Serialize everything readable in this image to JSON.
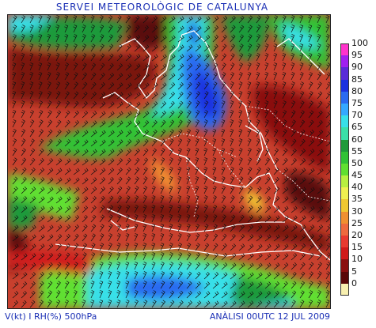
{
  "header": {
    "title": "SERVEI METEOROLÒGIC DE CATALUNYA"
  },
  "footer": {
    "left": "V(kt) I RH(%) 500hPa",
    "right": "ANÀLISI 00UTC 12 JUL 2009"
  },
  "legend": {
    "items": [
      {
        "label": "100",
        "color": "#ff33cc"
      },
      {
        "label": "95",
        "color": "#a020f0"
      },
      {
        "label": "90",
        "color": "#5a2bd8"
      },
      {
        "label": "85",
        "color": "#1a30e0"
      },
      {
        "label": "80",
        "color": "#2a6af0"
      },
      {
        "label": "75",
        "color": "#35a8ff"
      },
      {
        "label": "70",
        "color": "#38e0e8"
      },
      {
        "label": "65",
        "color": "#3ae0a8"
      },
      {
        "label": "60",
        "color": "#1f9a3a"
      },
      {
        "label": "55",
        "color": "#31c235"
      },
      {
        "label": "50",
        "color": "#60e030"
      },
      {
        "label": "45",
        "color": "#b8f040"
      },
      {
        "label": "40",
        "color": "#f0f050"
      },
      {
        "label": "35",
        "color": "#f0c830"
      },
      {
        "label": "30",
        "color": "#f09030"
      },
      {
        "label": "25",
        "color": "#ee6a3e"
      },
      {
        "label": "20",
        "color": "#e83a30"
      },
      {
        "label": "15",
        "color": "#d01a1a"
      },
      {
        "label": "10",
        "color": "#8a1010"
      },
      {
        "label": "5",
        "color": "#5a0808"
      },
      {
        "label": "0",
        "color": "#f8f0b0"
      }
    ]
  }
}
